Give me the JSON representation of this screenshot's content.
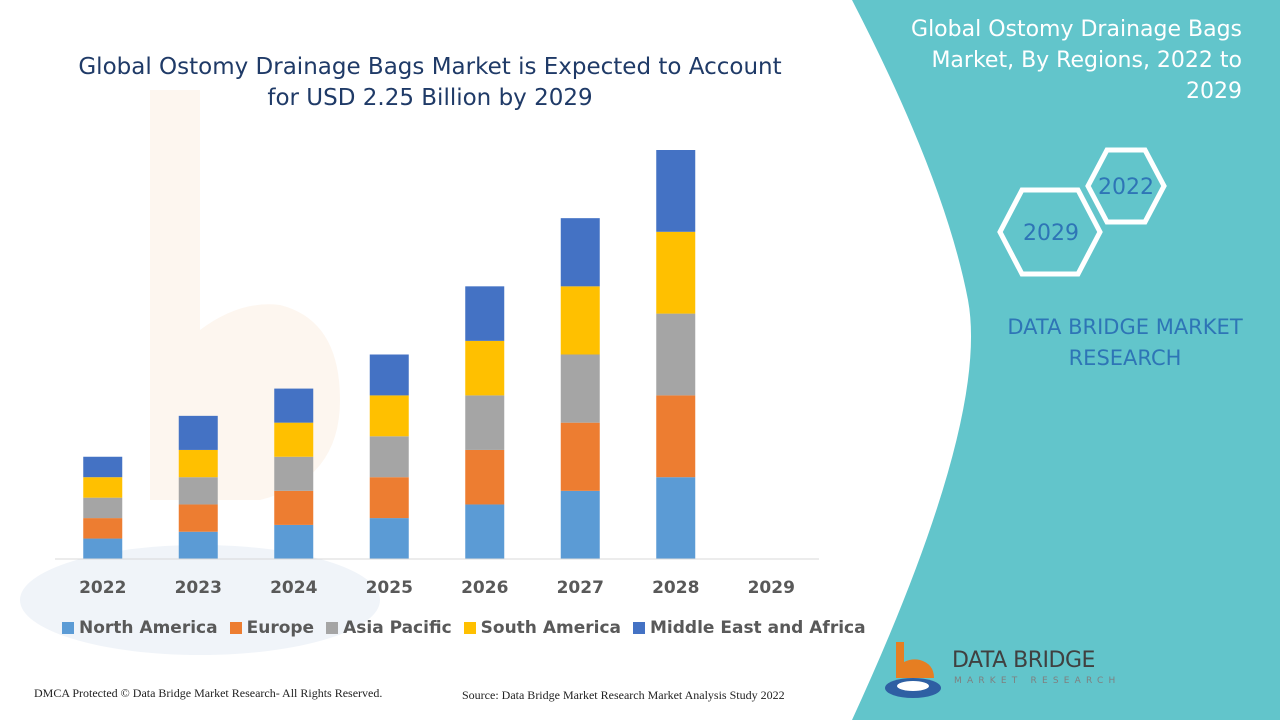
{
  "header": {
    "title": "Global Ostomy Drainage Bags Market is Expected to Account for USD 2.25 Billion by 2029"
  },
  "side_panel": {
    "title": "Global Ostomy Drainage Bags Market, By Regions, 2022 to 2029",
    "hex_labels": [
      "2022",
      "2029"
    ],
    "brand_text": "DATA BRIDGE MARKET RESEARCH"
  },
  "logo": {
    "name": "DATA BRIDGE",
    "sub": "MARKET RESEARCH"
  },
  "footer": {
    "left": "DMCA Protected © Data Bridge Market Research- All Rights Reserved.",
    "right": "Source: Data Bridge Market Research Market Analysis Study 2022"
  },
  "colors": {
    "teal": "#62c5cb",
    "title_text": "#1f3a67",
    "brand_text": "#2e75b6",
    "logo_orange": "#e67e22",
    "logo_blue": "#2e5fa3"
  },
  "chart_data": {
    "type": "bar",
    "stacked": true,
    "categories": [
      "2022",
      "2023",
      "2024",
      "2025",
      "2026",
      "2027",
      "2028",
      "2029"
    ],
    "series": [
      {
        "name": "North America",
        "color": "#5b9bd5",
        "values": [
          1.5,
          2,
          2.5,
          3,
          4,
          5,
          6,
          null
        ]
      },
      {
        "name": "Europe",
        "color": "#ed7d31",
        "values": [
          1.5,
          2,
          2.5,
          3,
          4,
          5,
          6,
          null
        ]
      },
      {
        "name": "Asia Pacific",
        "color": "#a5a5a5",
        "values": [
          1.5,
          2,
          2.5,
          3,
          4,
          5,
          6,
          null
        ]
      },
      {
        "name": "South America",
        "color": "#ffc000",
        "values": [
          1.5,
          2,
          2.5,
          3,
          4,
          5,
          6,
          null
        ]
      },
      {
        "name": "Middle East and Africa",
        "color": "#4472c4",
        "values": [
          1.5,
          2.5,
          2.5,
          3,
          4,
          5,
          6,
          null
        ]
      }
    ],
    "ylim": [
      0,
      30
    ],
    "legend_position": "bottom",
    "grid": false,
    "y_axis_visible": false
  }
}
